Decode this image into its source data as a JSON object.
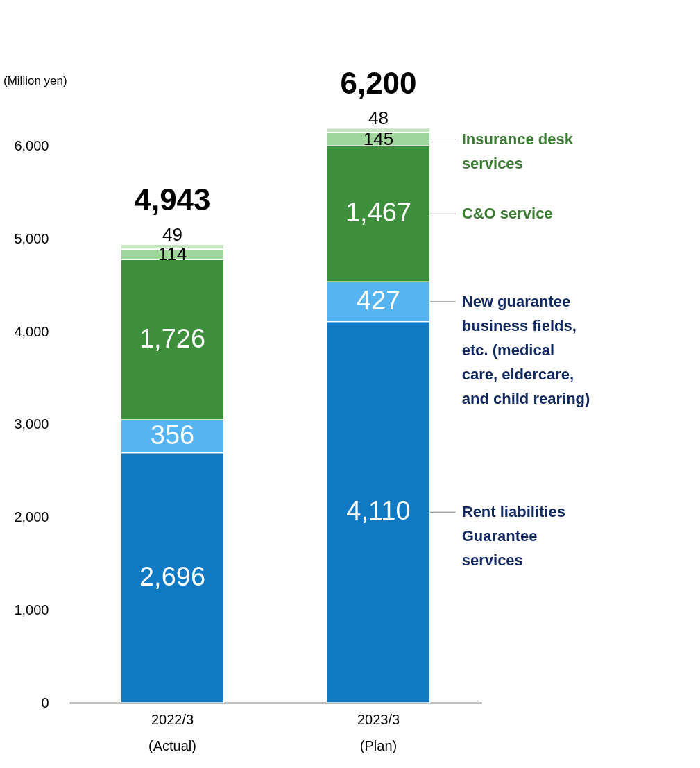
{
  "chart_data": {
    "type": "bar",
    "stacked": true,
    "annotations": [
      "(Million yen)"
    ],
    "categories": [
      "2022/3\n(Actual)",
      "2023/3\n(Plan)"
    ],
    "series": [
      {
        "name": "Rent liabilities\nGuarantee\nservices",
        "color": "#0f7ac3",
        "values": [
          2696,
          4110
        ],
        "value_labels": [
          "2,696",
          "4,110"
        ]
      },
      {
        "name": "New guarantee\nbusiness fields,\netc. (medical\ncare, eldercare,\nand child rearing)",
        "color": "#56b4f0",
        "values": [
          356,
          427
        ],
        "value_labels": [
          "356",
          "427"
        ]
      },
      {
        "name": "C&O service",
        "color": "#3e8f3c",
        "values": [
          1726,
          1467
        ],
        "value_labels": [
          "1,726",
          "1,467"
        ]
      },
      {
        "name": "Insurance desk\nservices",
        "color": "#a0d59c",
        "values": [
          114,
          145
        ],
        "value_labels": [
          "114",
          "145"
        ]
      },
      {
        "color": "#c8e6c3",
        "values": [
          49,
          48
        ],
        "value_labels": [
          "49",
          "48"
        ]
      }
    ],
    "totals": [
      "4,943",
      "6,200"
    ],
    "ylim": [
      0,
      6200
    ],
    "yticks": [
      0,
      {
        "value": 1000,
        "label": "1,000"
      },
      {
        "value": 2000,
        "label": "2,000"
      },
      {
        "value": 3000,
        "label": "3,000"
      },
      {
        "value": 4000,
        "label": "4,000"
      },
      {
        "value": 5000,
        "label": "5,000"
      },
      {
        "value": 6000,
        "label": "6,000"
      }
    ]
  }
}
